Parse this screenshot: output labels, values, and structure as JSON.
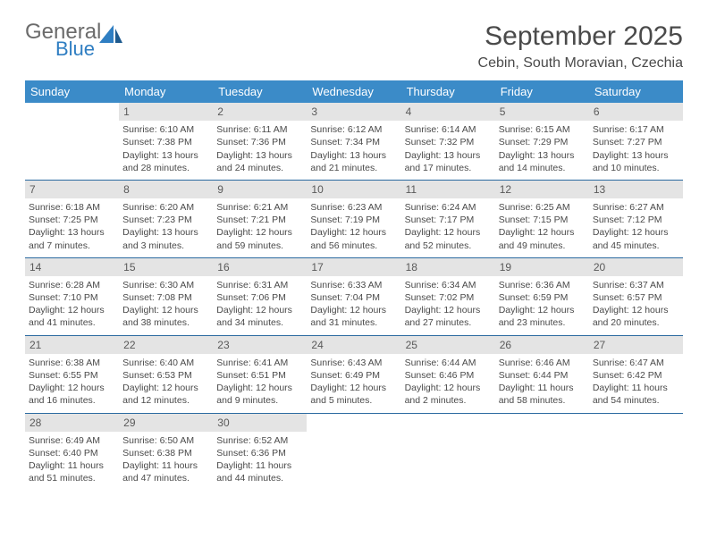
{
  "brand": {
    "line1": "General",
    "line2": "Blue"
  },
  "title": "September 2025",
  "location": "Cebin, South Moravian, Czechia",
  "colors": {
    "headerBg": "#3b8bc8",
    "headerText": "#ffffff",
    "dayNumBg": "#e4e4e4",
    "ruleColor": "#2b6aa0",
    "bodyText": "#4a4a4a",
    "logoBlue": "#2f7ec2"
  },
  "typography": {
    "titleFontSize": 30,
    "locationFontSize": 16,
    "dayHeaderFontSize": 13,
    "cellFontSize": 10.5
  },
  "dayHeaders": [
    "Sunday",
    "Monday",
    "Tuesday",
    "Wednesday",
    "Thursday",
    "Friday",
    "Saturday"
  ],
  "weeks": [
    [
      {
        "n": "",
        "sunrise": "",
        "sunset": "",
        "daylight": ""
      },
      {
        "n": "1",
        "sunrise": "Sunrise: 6:10 AM",
        "sunset": "Sunset: 7:38 PM",
        "daylight": "Daylight: 13 hours and 28 minutes."
      },
      {
        "n": "2",
        "sunrise": "Sunrise: 6:11 AM",
        "sunset": "Sunset: 7:36 PM",
        "daylight": "Daylight: 13 hours and 24 minutes."
      },
      {
        "n": "3",
        "sunrise": "Sunrise: 6:12 AM",
        "sunset": "Sunset: 7:34 PM",
        "daylight": "Daylight: 13 hours and 21 minutes."
      },
      {
        "n": "4",
        "sunrise": "Sunrise: 6:14 AM",
        "sunset": "Sunset: 7:32 PM",
        "daylight": "Daylight: 13 hours and 17 minutes."
      },
      {
        "n": "5",
        "sunrise": "Sunrise: 6:15 AM",
        "sunset": "Sunset: 7:29 PM",
        "daylight": "Daylight: 13 hours and 14 minutes."
      },
      {
        "n": "6",
        "sunrise": "Sunrise: 6:17 AM",
        "sunset": "Sunset: 7:27 PM",
        "daylight": "Daylight: 13 hours and 10 minutes."
      }
    ],
    [
      {
        "n": "7",
        "sunrise": "Sunrise: 6:18 AM",
        "sunset": "Sunset: 7:25 PM",
        "daylight": "Daylight: 13 hours and 7 minutes."
      },
      {
        "n": "8",
        "sunrise": "Sunrise: 6:20 AM",
        "sunset": "Sunset: 7:23 PM",
        "daylight": "Daylight: 13 hours and 3 minutes."
      },
      {
        "n": "9",
        "sunrise": "Sunrise: 6:21 AM",
        "sunset": "Sunset: 7:21 PM",
        "daylight": "Daylight: 12 hours and 59 minutes."
      },
      {
        "n": "10",
        "sunrise": "Sunrise: 6:23 AM",
        "sunset": "Sunset: 7:19 PM",
        "daylight": "Daylight: 12 hours and 56 minutes."
      },
      {
        "n": "11",
        "sunrise": "Sunrise: 6:24 AM",
        "sunset": "Sunset: 7:17 PM",
        "daylight": "Daylight: 12 hours and 52 minutes."
      },
      {
        "n": "12",
        "sunrise": "Sunrise: 6:25 AM",
        "sunset": "Sunset: 7:15 PM",
        "daylight": "Daylight: 12 hours and 49 minutes."
      },
      {
        "n": "13",
        "sunrise": "Sunrise: 6:27 AM",
        "sunset": "Sunset: 7:12 PM",
        "daylight": "Daylight: 12 hours and 45 minutes."
      }
    ],
    [
      {
        "n": "14",
        "sunrise": "Sunrise: 6:28 AM",
        "sunset": "Sunset: 7:10 PM",
        "daylight": "Daylight: 12 hours and 41 minutes."
      },
      {
        "n": "15",
        "sunrise": "Sunrise: 6:30 AM",
        "sunset": "Sunset: 7:08 PM",
        "daylight": "Daylight: 12 hours and 38 minutes."
      },
      {
        "n": "16",
        "sunrise": "Sunrise: 6:31 AM",
        "sunset": "Sunset: 7:06 PM",
        "daylight": "Daylight: 12 hours and 34 minutes."
      },
      {
        "n": "17",
        "sunrise": "Sunrise: 6:33 AM",
        "sunset": "Sunset: 7:04 PM",
        "daylight": "Daylight: 12 hours and 31 minutes."
      },
      {
        "n": "18",
        "sunrise": "Sunrise: 6:34 AM",
        "sunset": "Sunset: 7:02 PM",
        "daylight": "Daylight: 12 hours and 27 minutes."
      },
      {
        "n": "19",
        "sunrise": "Sunrise: 6:36 AM",
        "sunset": "Sunset: 6:59 PM",
        "daylight": "Daylight: 12 hours and 23 minutes."
      },
      {
        "n": "20",
        "sunrise": "Sunrise: 6:37 AM",
        "sunset": "Sunset: 6:57 PM",
        "daylight": "Daylight: 12 hours and 20 minutes."
      }
    ],
    [
      {
        "n": "21",
        "sunrise": "Sunrise: 6:38 AM",
        "sunset": "Sunset: 6:55 PM",
        "daylight": "Daylight: 12 hours and 16 minutes."
      },
      {
        "n": "22",
        "sunrise": "Sunrise: 6:40 AM",
        "sunset": "Sunset: 6:53 PM",
        "daylight": "Daylight: 12 hours and 12 minutes."
      },
      {
        "n": "23",
        "sunrise": "Sunrise: 6:41 AM",
        "sunset": "Sunset: 6:51 PM",
        "daylight": "Daylight: 12 hours and 9 minutes."
      },
      {
        "n": "24",
        "sunrise": "Sunrise: 6:43 AM",
        "sunset": "Sunset: 6:49 PM",
        "daylight": "Daylight: 12 hours and 5 minutes."
      },
      {
        "n": "25",
        "sunrise": "Sunrise: 6:44 AM",
        "sunset": "Sunset: 6:46 PM",
        "daylight": "Daylight: 12 hours and 2 minutes."
      },
      {
        "n": "26",
        "sunrise": "Sunrise: 6:46 AM",
        "sunset": "Sunset: 6:44 PM",
        "daylight": "Daylight: 11 hours and 58 minutes."
      },
      {
        "n": "27",
        "sunrise": "Sunrise: 6:47 AM",
        "sunset": "Sunset: 6:42 PM",
        "daylight": "Daylight: 11 hours and 54 minutes."
      }
    ],
    [
      {
        "n": "28",
        "sunrise": "Sunrise: 6:49 AM",
        "sunset": "Sunset: 6:40 PM",
        "daylight": "Daylight: 11 hours and 51 minutes."
      },
      {
        "n": "29",
        "sunrise": "Sunrise: 6:50 AM",
        "sunset": "Sunset: 6:38 PM",
        "daylight": "Daylight: 11 hours and 47 minutes."
      },
      {
        "n": "30",
        "sunrise": "Sunrise: 6:52 AM",
        "sunset": "Sunset: 6:36 PM",
        "daylight": "Daylight: 11 hours and 44 minutes."
      },
      {
        "n": "",
        "sunrise": "",
        "sunset": "",
        "daylight": ""
      },
      {
        "n": "",
        "sunrise": "",
        "sunset": "",
        "daylight": ""
      },
      {
        "n": "",
        "sunrise": "",
        "sunset": "",
        "daylight": ""
      },
      {
        "n": "",
        "sunrise": "",
        "sunset": "",
        "daylight": ""
      }
    ]
  ]
}
